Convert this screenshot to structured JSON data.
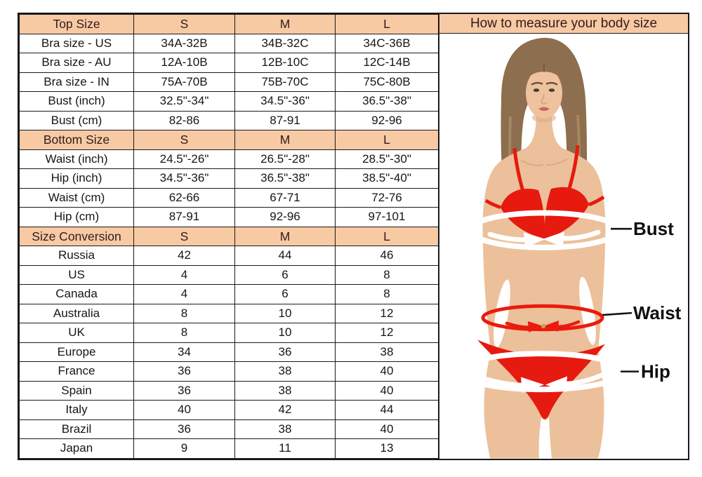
{
  "colors": {
    "header_bg": "#f7caa4",
    "header_text": "#331a1a",
    "border": "#1a1a1a",
    "body_text": "#161616",
    "bikini_red": "#e61a0e",
    "band_red": "#ea1b0e",
    "band_white": "#ffffff",
    "skin": "#ecc09b",
    "hair": "#8d6e4e"
  },
  "size_table": {
    "sections": [
      {
        "header": {
          "label": "Top Size",
          "cols": [
            "S",
            "M",
            "L"
          ]
        },
        "rows": [
          {
            "label": "Bra size - US",
            "values": [
              "34A-32B",
              "34B-32C",
              "34C-36B"
            ]
          },
          {
            "label": "Bra size - AU",
            "values": [
              "12A-10B",
              "12B-10C",
              "12C-14B"
            ]
          },
          {
            "label": "Bra size - IN",
            "values": [
              "75A-70B",
              "75B-70C",
              "75C-80B"
            ]
          },
          {
            "label": "Bust (inch)",
            "values": [
              "32.5\"-34\"",
              "34.5\"-36\"",
              "36.5\"-38\""
            ]
          },
          {
            "label": "Bust (cm)",
            "values": [
              "82-86",
              "87-91",
              "92-96"
            ]
          }
        ]
      },
      {
        "header": {
          "label": "Bottom Size",
          "cols": [
            "S",
            "M",
            "L"
          ]
        },
        "rows": [
          {
            "label": "Waist (inch)",
            "values": [
              "24.5\"-26\"",
              "26.5\"-28\"",
              "28.5\"-30\""
            ]
          },
          {
            "label": "Hip (inch)",
            "values": [
              "34.5\"-36\"",
              "36.5\"-38\"",
              "38.5\"-40\""
            ]
          },
          {
            "label": "Waist (cm)",
            "values": [
              "62-66",
              "67-71",
              "72-76"
            ]
          },
          {
            "label": "Hip (cm)",
            "values": [
              "87-91",
              "92-96",
              "97-101"
            ]
          }
        ]
      },
      {
        "header": {
          "label": "Size Conversion",
          "cols": [
            "S",
            "M",
            "L"
          ]
        },
        "rows": [
          {
            "label": "Russia",
            "values": [
              "42",
              "44",
              "46"
            ]
          },
          {
            "label": "US",
            "values": [
              "4",
              "6",
              "8"
            ]
          },
          {
            "label": "Canada",
            "values": [
              "4",
              "6",
              "8"
            ]
          },
          {
            "label": "Australia",
            "values": [
              "8",
              "10",
              "12"
            ]
          },
          {
            "label": "UK",
            "values": [
              "8",
              "10",
              "12"
            ]
          },
          {
            "label": "Europe",
            "values": [
              "34",
              "36",
              "38"
            ]
          },
          {
            "label": "France",
            "values": [
              "36",
              "38",
              "40"
            ]
          },
          {
            "label": "Spain",
            "values": [
              "36",
              "38",
              "40"
            ]
          },
          {
            "label": "Italy",
            "values": [
              "40",
              "42",
              "44"
            ]
          },
          {
            "label": "Brazil",
            "values": [
              "36",
              "38",
              "40"
            ]
          },
          {
            "label": "Japan",
            "values": [
              "9",
              "11",
              "13"
            ]
          }
        ]
      }
    ]
  },
  "measure_panel": {
    "title": "How to measure your body size",
    "labels": {
      "bust": "Bust",
      "waist": "Waist",
      "hip": "Hip"
    }
  }
}
